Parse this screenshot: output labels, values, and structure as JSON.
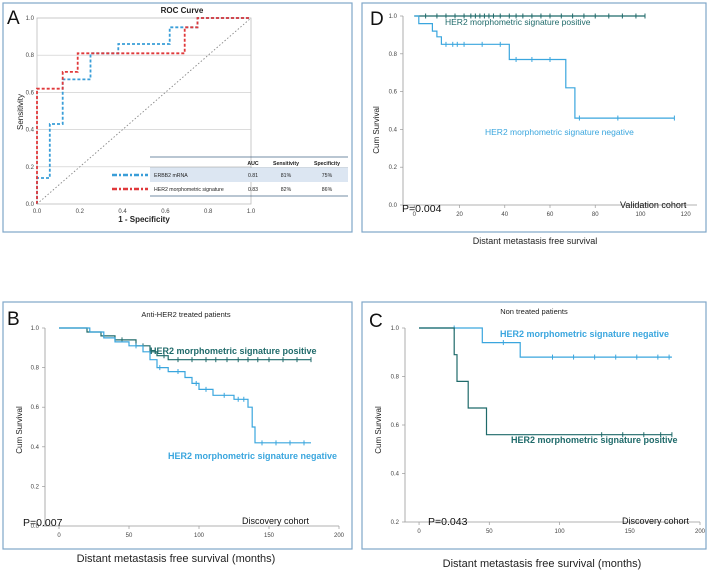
{
  "colors": {
    "dark_teal": "#1f6a6a",
    "light_blue": "#3aa6de",
    "roc_blue": "#3a9ed8",
    "roc_red": "#e0393b",
    "frame": "#7fa6c9"
  },
  "panels": {
    "A": {
      "letter": "A",
      "title": "ROC Curve",
      "xlabel": "1 - Specificity",
      "ylabel": "Sensitivity",
      "x_ticks": [
        "0.0",
        "0.2",
        "0.4",
        "0.6",
        "0.8",
        "1.0"
      ],
      "y_ticks": [
        "0.0",
        "0.2",
        "0.4",
        "0.6",
        "0.8",
        "1.0"
      ],
      "table": {
        "headers": [
          "AUC",
          "Sensitivity",
          "Specificity"
        ],
        "rows": [
          {
            "name": "ERBB2 mRNA",
            "auc": "0.81",
            "sens": "81%",
            "spec": "75%"
          },
          {
            "name": "HER2 morphometric signature",
            "auc": "0.83",
            "sens": "82%",
            "spec": "86%"
          }
        ]
      }
    },
    "B": {
      "letter": "B",
      "title": "Anti-HER2 treated patients",
      "xlabel": "Distant metastasis free survival (months)",
      "ylabel": "Cum Survival",
      "x_ticks": [
        "0",
        "50",
        "100",
        "150",
        "200"
      ],
      "y_ticks": [
        "0.0",
        "0.2",
        "0.4",
        "0.6",
        "0.8",
        "1.0"
      ],
      "pvalue": "P=0.007",
      "cohort": "Discovery cohort",
      "label_positive": "HER2 morphometric signature positive",
      "label_negative": "HER2 morphometric signature negative"
    },
    "C": {
      "letter": "C",
      "title": "Non treated patients",
      "xlabel": "Distant metastasis free survival (months)",
      "ylabel": "Cum Survival",
      "x_ticks": [
        "0",
        "50",
        "100",
        "150",
        "200"
      ],
      "y_ticks": [
        "0.2",
        "0.4",
        "0.6",
        "0.8",
        "1.0"
      ],
      "pvalue": "P=0.043",
      "cohort": "Discovery cohort",
      "label_positive": "HER2 morphometric signature positive",
      "label_negative": "HER2 morphometric signature negative"
    },
    "D": {
      "letter": "D",
      "xlabel": "Distant metastasis free survival",
      "ylabel": "Cum Survival",
      "x_ticks": [
        "0",
        "20",
        "40",
        "60",
        "80",
        "100",
        "120"
      ],
      "y_ticks": [
        "0.0",
        "0.2",
        "0.4",
        "0.6",
        "0.8",
        "1.0"
      ],
      "pvalue": "P=0.004",
      "cohort": "Validation cohort",
      "label_positive": "HER2 morphometric signature positive",
      "label_negative": "HER2 morphometric signature negative"
    }
  },
  "chart_data": [
    {
      "type": "line",
      "panel": "A",
      "title": "ROC Curve",
      "xlabel": "1 - Specificity",
      "ylabel": "Sensitivity",
      "xlim": [
        0,
        1
      ],
      "ylim": [
        0,
        1
      ],
      "series": [
        {
          "name": "ERBB2 mRNA",
          "auc": 0.81,
          "color": "#3a9ed8",
          "dash": true,
          "points": [
            [
              0,
              0
            ],
            [
              0,
              0.14
            ],
            [
              0.06,
              0.14
            ],
            [
              0.06,
              0.43
            ],
            [
              0.12,
              0.43
            ],
            [
              0.12,
              0.67
            ],
            [
              0.25,
              0.67
            ],
            [
              0.25,
              0.81
            ],
            [
              0.38,
              0.81
            ],
            [
              0.38,
              0.86
            ],
            [
              0.62,
              0.86
            ],
            [
              0.62,
              0.95
            ],
            [
              0.75,
              0.95
            ],
            [
              0.75,
              1
            ],
            [
              1,
              1
            ]
          ]
        },
        {
          "name": "HER2 morphometric signature",
          "auc": 0.83,
          "color": "#e0393b",
          "dash": true,
          "points": [
            [
              0,
              0
            ],
            [
              0,
              0.62
            ],
            [
              0.12,
              0.62
            ],
            [
              0.12,
              0.71
            ],
            [
              0.19,
              0.71
            ],
            [
              0.19,
              0.81
            ],
            [
              0.69,
              0.81
            ],
            [
              0.69,
              0.95
            ],
            [
              0.75,
              0.95
            ],
            [
              0.75,
              1
            ],
            [
              1,
              1
            ]
          ]
        },
        {
          "name": "reference",
          "color": "#888888",
          "dotted": true,
          "points": [
            [
              0,
              0
            ],
            [
              1,
              1
            ]
          ]
        }
      ]
    },
    {
      "type": "line",
      "panel": "B",
      "title": "Anti-HER2 treated patients",
      "xlabel": "Distant metastasis free survival (months)",
      "ylabel": "Cum Survival",
      "xlim": [
        -10,
        200
      ],
      "ylim": [
        0,
        1
      ],
      "series": [
        {
          "name": "HER2 morphometric signature positive",
          "color": "#1f6a6a",
          "points": [
            [
              0,
              1
            ],
            [
              20,
              1
            ],
            [
              20,
              0.98
            ],
            [
              30,
              0.98
            ],
            [
              30,
              0.96
            ],
            [
              40,
              0.96
            ],
            [
              40,
              0.94
            ],
            [
              55,
              0.94
            ],
            [
              55,
              0.91
            ],
            [
              65,
              0.91
            ],
            [
              65,
              0.88
            ],
            [
              70,
              0.88
            ],
            [
              70,
              0.86
            ],
            [
              78,
              0.86
            ],
            [
              78,
              0.84
            ],
            [
              180,
              0.84
            ]
          ],
          "censors": [
            45,
            60,
            75,
            85,
            95,
            105,
            112,
            120,
            128,
            135,
            142,
            150,
            160,
            170,
            180
          ]
        },
        {
          "name": "HER2 morphometric signature negative",
          "color": "#3aa6de",
          "points": [
            [
              0,
              1
            ],
            [
              22,
              1
            ],
            [
              22,
              0.98
            ],
            [
              32,
              0.98
            ],
            [
              32,
              0.95
            ],
            [
              40,
              0.95
            ],
            [
              40,
              0.93
            ],
            [
              50,
              0.93
            ],
            [
              50,
              0.91
            ],
            [
              60,
              0.91
            ],
            [
              60,
              0.88
            ],
            [
              65,
              0.88
            ],
            [
              65,
              0.84
            ],
            [
              70,
              0.84
            ],
            [
              70,
              0.8
            ],
            [
              78,
              0.8
            ],
            [
              78,
              0.78
            ],
            [
              90,
              0.78
            ],
            [
              90,
              0.75
            ],
            [
              95,
              0.75
            ],
            [
              95,
              0.72
            ],
            [
              100,
              0.72
            ],
            [
              100,
              0.69
            ],
            [
              110,
              0.69
            ],
            [
              110,
              0.66
            ],
            [
              125,
              0.66
            ],
            [
              125,
              0.64
            ],
            [
              135,
              0.64
            ],
            [
              135,
              0.6
            ],
            [
              138,
              0.6
            ],
            [
              138,
              0.5
            ],
            [
              140,
              0.5
            ],
            [
              140,
              0.42
            ],
            [
              180,
              0.42
            ]
          ],
          "censors": [
            55,
            72,
            85,
            98,
            105,
            118,
            128,
            132,
            145,
            155,
            165,
            175
          ]
        }
      ]
    },
    {
      "type": "line",
      "panel": "C",
      "title": "Non treated patients",
      "xlabel": "Distant metastasis free survival (months)",
      "ylabel": "Cum Survival",
      "xlim": [
        -10,
        200
      ],
      "ylim": [
        0.2,
        1
      ],
      "series": [
        {
          "name": "HER2 morphometric signature negative",
          "color": "#3aa6de",
          "points": [
            [
              0,
              1
            ],
            [
              45,
              1
            ],
            [
              45,
              0.94
            ],
            [
              72,
              0.94
            ],
            [
              72,
              0.88
            ],
            [
              180,
              0.88
            ]
          ],
          "censors": [
            25,
            60,
            95,
            110,
            125,
            140,
            155,
            170,
            178
          ]
        },
        {
          "name": "HER2 morphometric signature positive",
          "color": "#1f6a6a",
          "points": [
            [
              0,
              1
            ],
            [
              25,
              1
            ],
            [
              25,
              0.89
            ],
            [
              27,
              0.89
            ],
            [
              27,
              0.78
            ],
            [
              35,
              0.78
            ],
            [
              35,
              0.67
            ],
            [
              48,
              0.67
            ],
            [
              48,
              0.56
            ],
            [
              180,
              0.56
            ]
          ],
          "censors": [
            130,
            145,
            160,
            172,
            180
          ]
        }
      ]
    },
    {
      "type": "line",
      "panel": "D",
      "xlabel": "Distant metastasis free survival",
      "ylabel": "Cum Survival",
      "xlim": [
        -5,
        125
      ],
      "ylim": [
        0,
        1
      ],
      "series": [
        {
          "name": "HER2 morphometric signature positive",
          "color": "#1f6a6a",
          "points": [
            [
              0,
              1
            ],
            [
              102,
              1
            ]
          ],
          "censors": [
            5,
            10,
            14,
            18,
            22,
            25,
            27,
            29,
            31,
            33,
            35,
            38,
            42,
            45,
            48,
            52,
            56,
            60,
            65,
            70,
            75,
            80,
            86,
            92,
            98,
            102
          ]
        },
        {
          "name": "HER2 morphometric signature negative",
          "color": "#3aa6de",
          "points": [
            [
              0,
              1
            ],
            [
              2,
              1
            ],
            [
              2,
              0.96
            ],
            [
              8,
              0.96
            ],
            [
              8,
              0.92
            ],
            [
              10,
              0.92
            ],
            [
              10,
              0.89
            ],
            [
              12,
              0.89
            ],
            [
              12,
              0.85
            ],
            [
              42,
              0.85
            ],
            [
              42,
              0.77
            ],
            [
              67,
              0.77
            ],
            [
              67,
              0.62
            ],
            [
              71,
              0.62
            ],
            [
              71,
              0.46
            ],
            [
              115,
              0.46
            ]
          ],
          "censors": [
            14,
            17,
            19,
            22,
            30,
            38,
            45,
            52,
            60,
            73,
            90,
            115
          ]
        }
      ]
    }
  ]
}
